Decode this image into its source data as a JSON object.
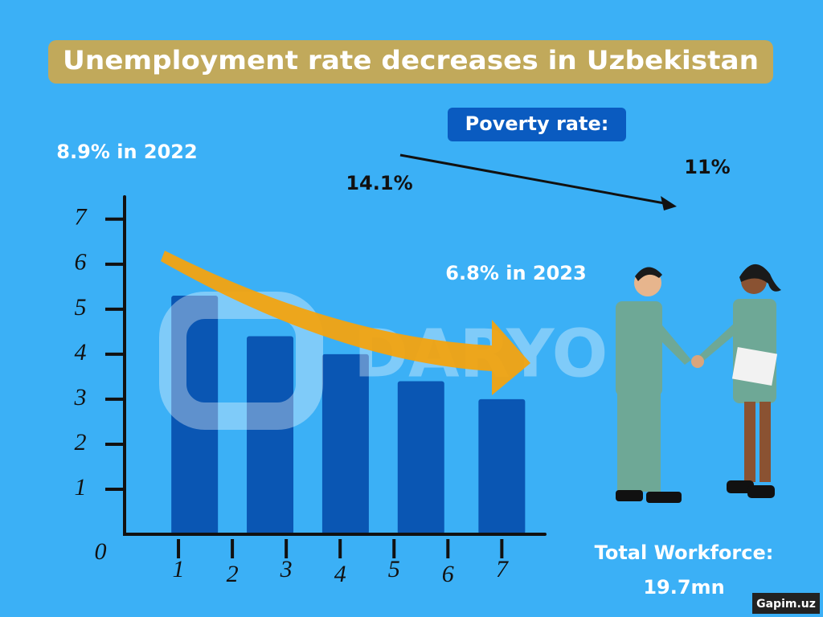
{
  "chart_data": {
    "type": "bar",
    "title": "Unemployment rate decreases in Uzbekistan",
    "x": [
      1.3,
      2.7,
      4.1,
      5.5,
      7.0
    ],
    "values": [
      5.3,
      4.4,
      4.0,
      3.4,
      3.0
    ],
    "color": "#0a56b3",
    "xlim": [
      0,
      7.8
    ],
    "xticks": [
      1,
      2,
      3,
      4,
      5,
      6,
      7
    ],
    "ylim": [
      0,
      7.3
    ],
    "yticks": [
      0,
      1,
      2,
      3,
      4,
      5,
      6,
      7
    ],
    "annotations": {
      "start": "8.9% in 2022",
      "end": "6.8% in 2023",
      "poverty_label": "Poverty rate:",
      "poverty_from": "14.1%",
      "poverty_to": "11%",
      "workforce_label": "Total Workforce:",
      "workforce_value": "19.7mn",
      "watermark": "DARYO",
      "source": "Gapim.uz"
    }
  }
}
